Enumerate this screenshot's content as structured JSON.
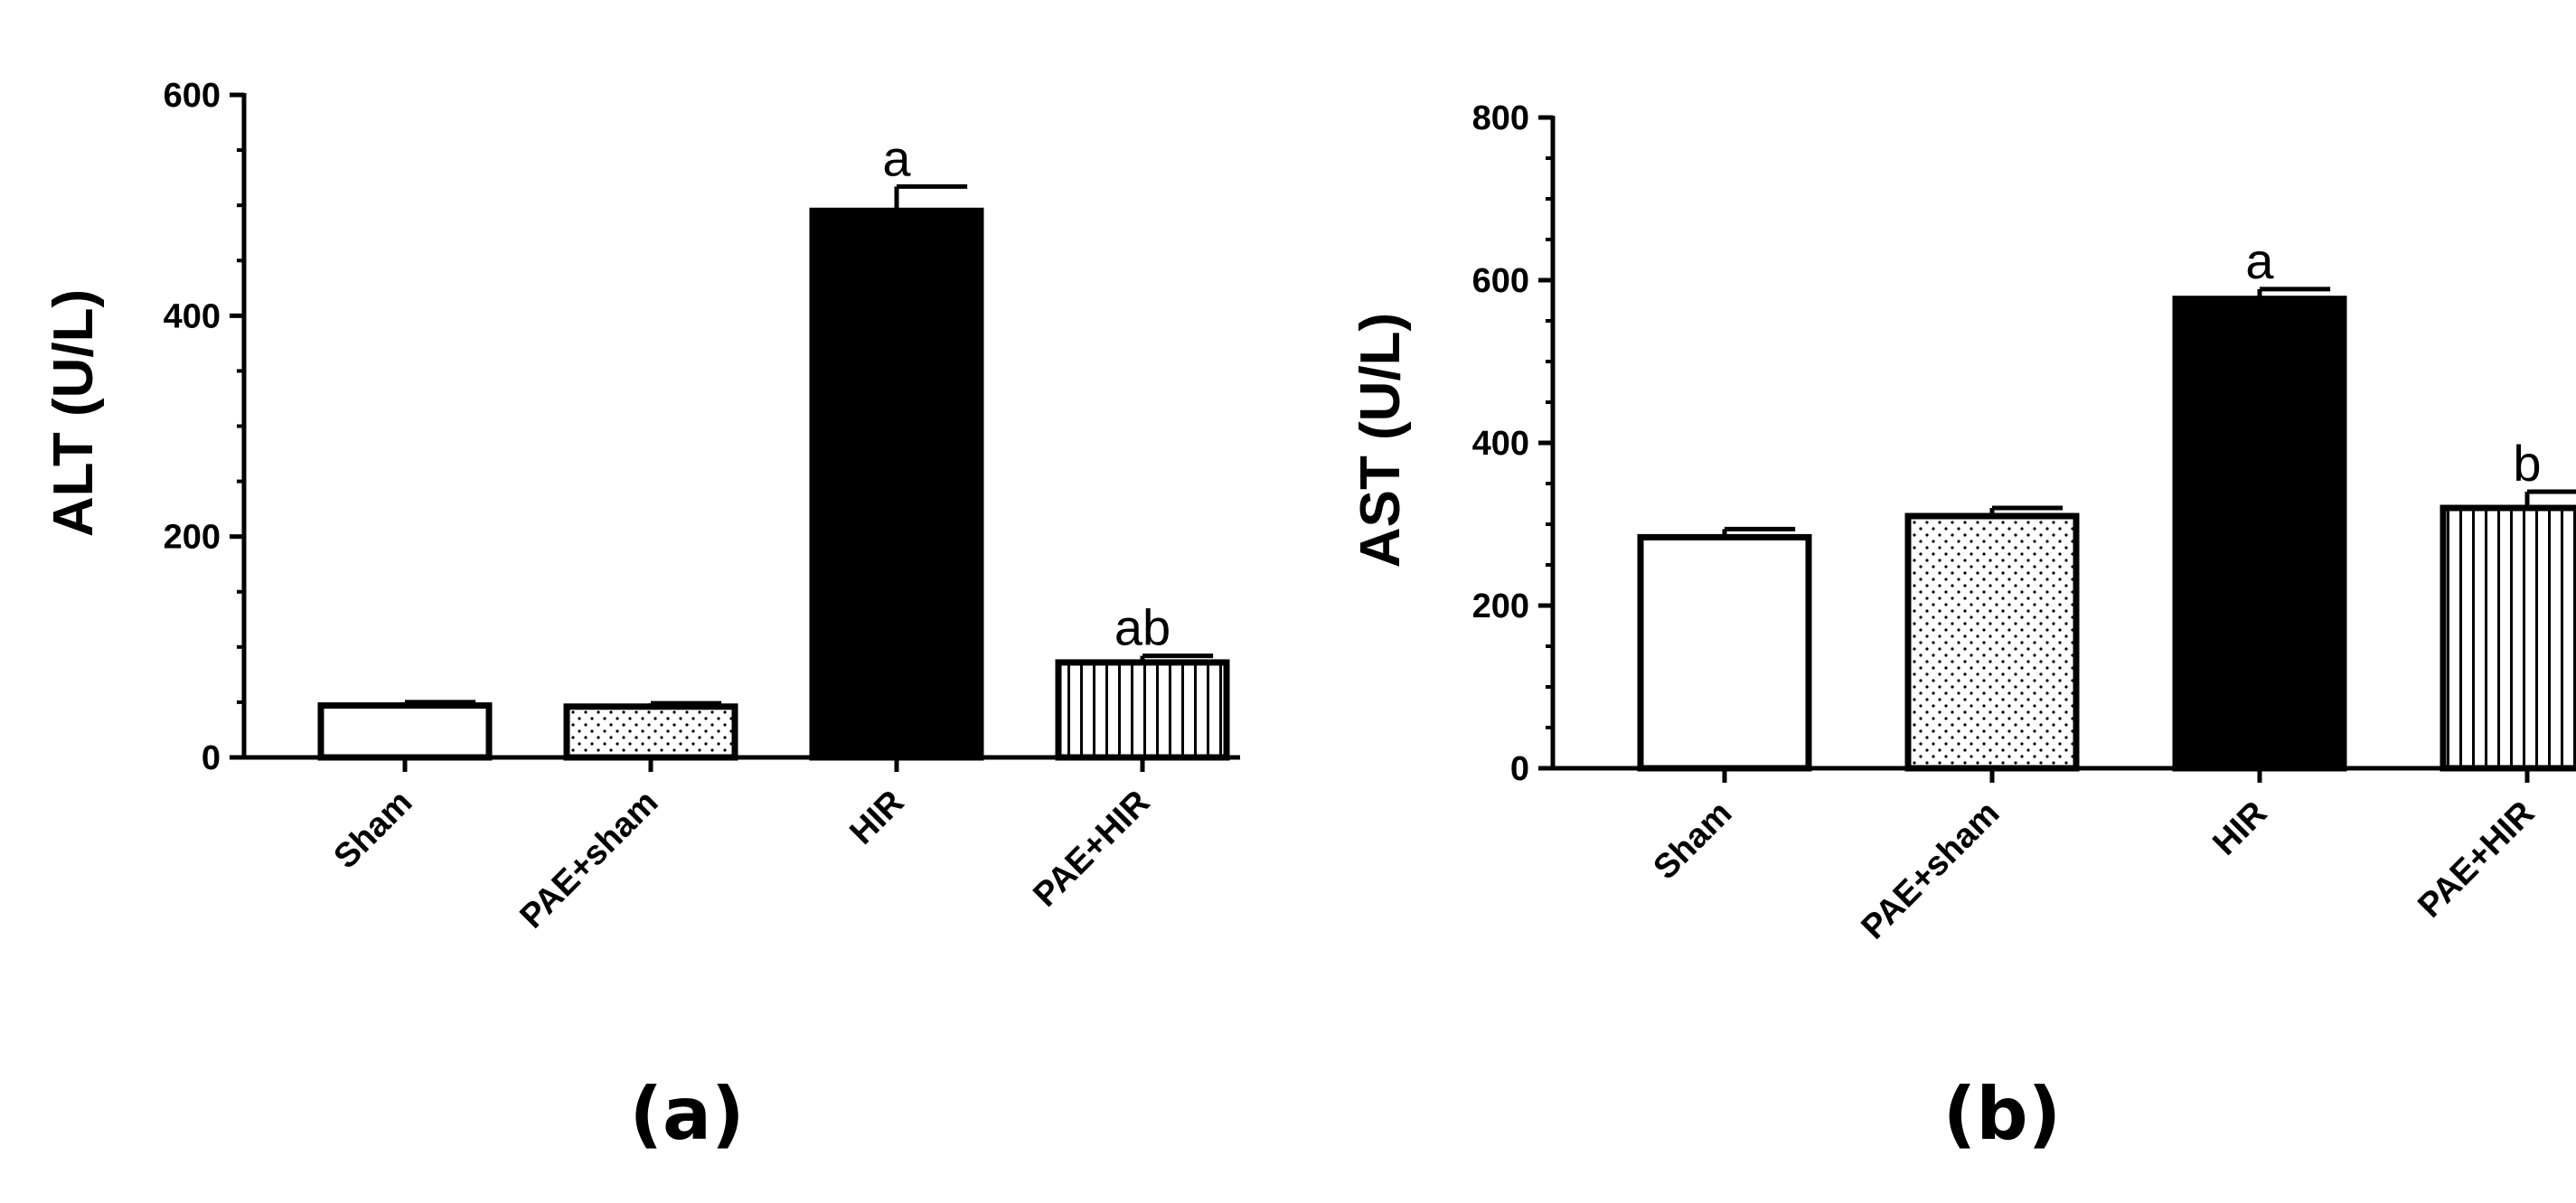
{
  "chart_data": [
    {
      "type": "bar",
      "panel_label": "(a)",
      "ylabel": "ALT (U/L)",
      "xlabel": "",
      "ylim": [
        0,
        600
      ],
      "yticks": [
        0,
        200,
        400,
        600
      ],
      "categories": [
        "Sham",
        "PAE+sham",
        "HIR",
        "PAE+HIR"
      ],
      "values": [
        47,
        46,
        495,
        86
      ],
      "errors": [
        3,
        3,
        22,
        6
      ],
      "annotations": [
        "",
        "",
        "a",
        "ab"
      ],
      "fills": [
        "white",
        "dots",
        "black",
        "vlines"
      ]
    },
    {
      "type": "bar",
      "panel_label": "(b)",
      "ylabel": "AST (U/L)",
      "xlabel": "",
      "ylim": [
        0,
        800
      ],
      "yticks": [
        0,
        200,
        400,
        600,
        800
      ],
      "categories": [
        "Sham",
        "PAE+sham",
        "HIR",
        "PAE+HIR"
      ],
      "values": [
        284,
        310,
        577,
        320
      ],
      "errors": [
        10,
        10,
        12,
        20
      ],
      "annotations": [
        "",
        "",
        "a",
        "b"
      ],
      "fills": [
        "white",
        "dots",
        "black",
        "vlines"
      ]
    }
  ]
}
